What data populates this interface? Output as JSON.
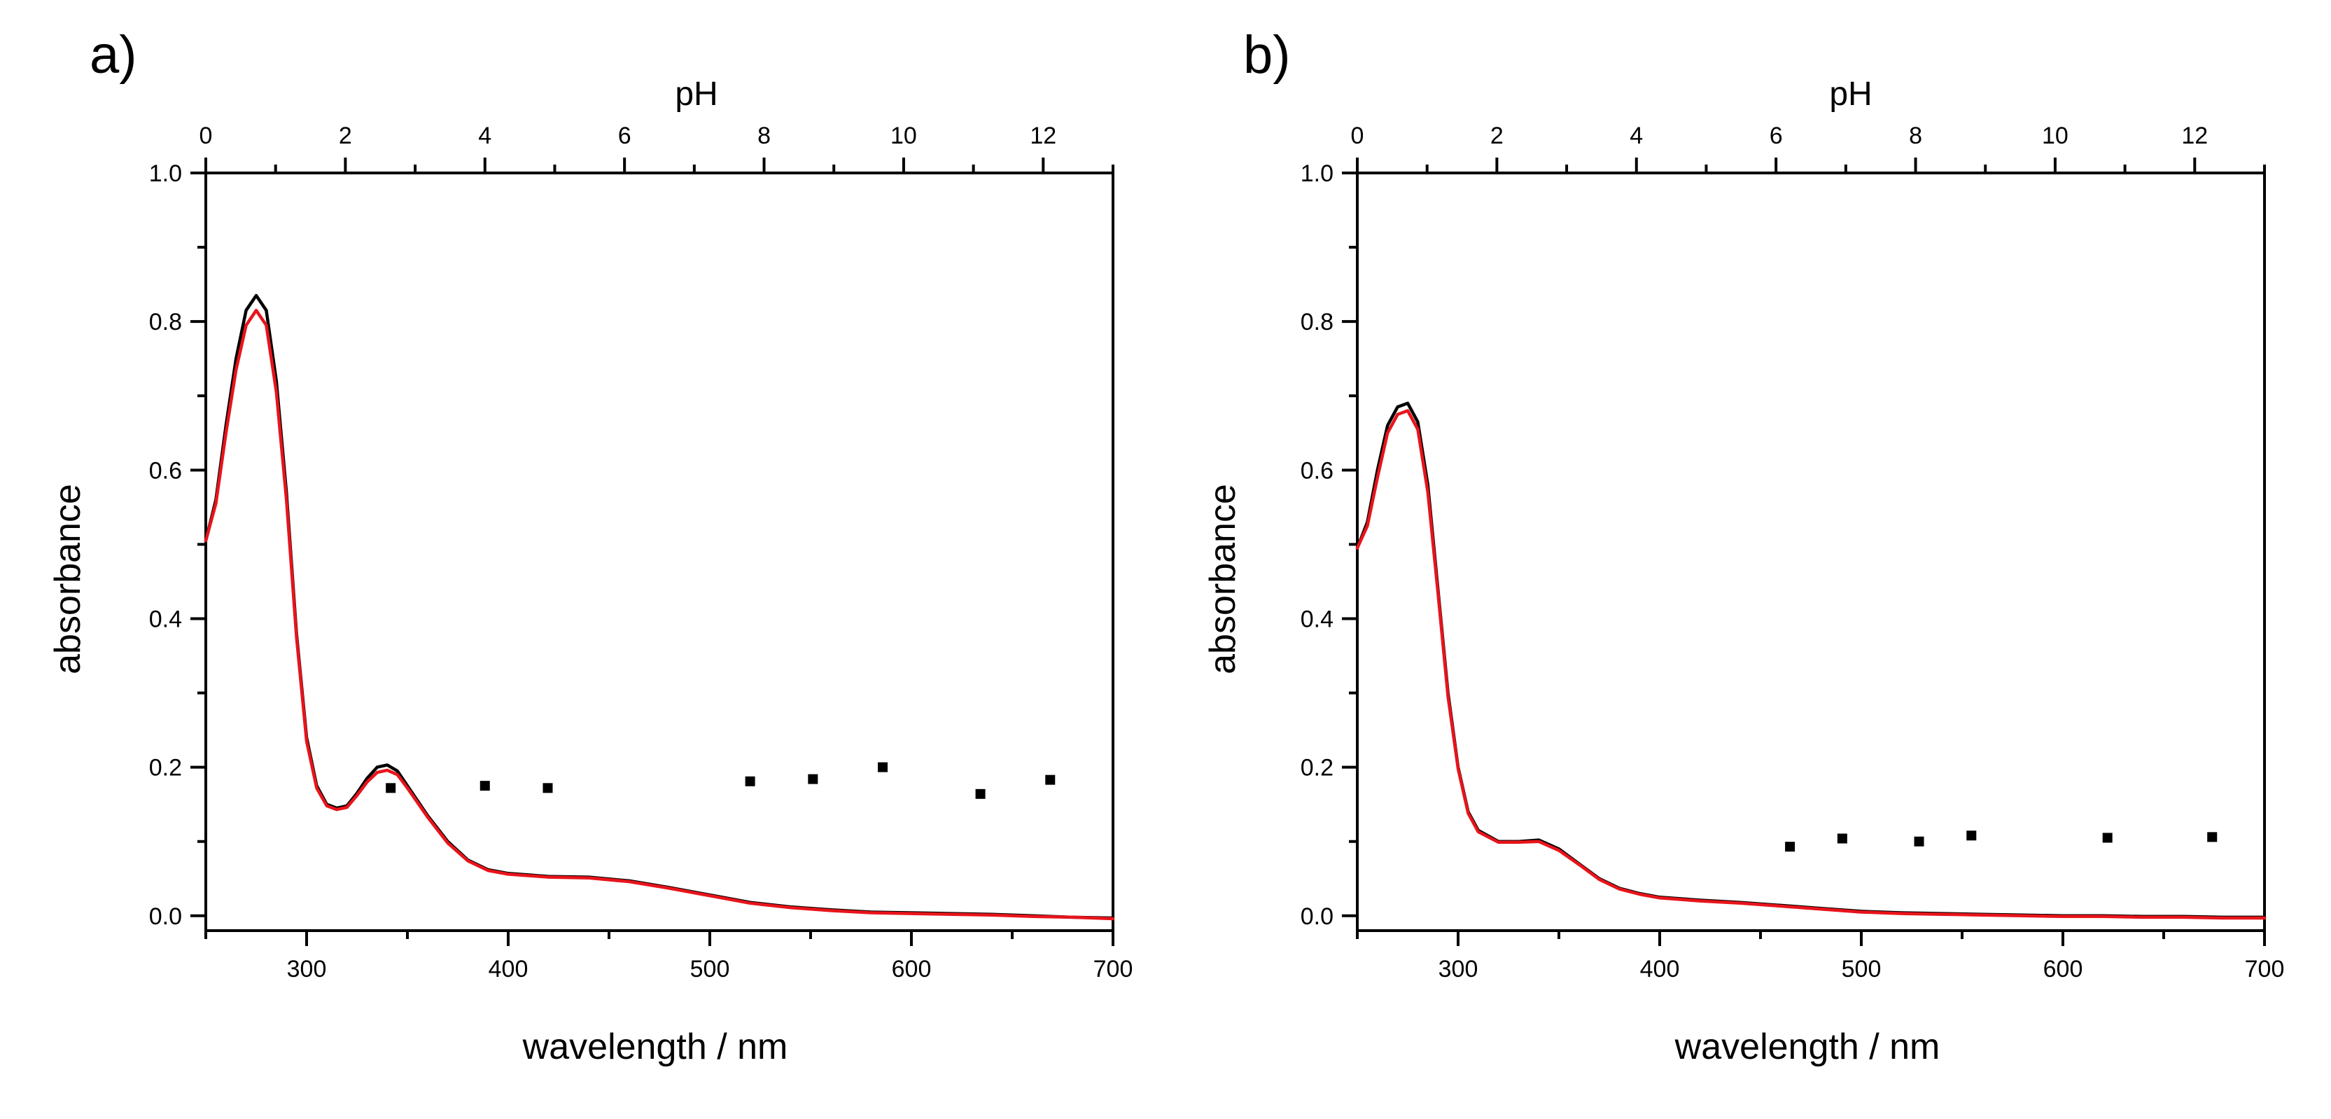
{
  "colors": {
    "series_black": "#000000",
    "series_red": "#e8141b",
    "points": "#000000"
  },
  "chart_data": [
    {
      "panel": "a)",
      "type": "line",
      "xlabel": "wavelength / nm",
      "ylabel": "absorbance",
      "top_xlabel": "pH",
      "xlim": [
        250,
        700
      ],
      "ylim": [
        -0.02,
        1.0
      ],
      "x_ticks": [
        300,
        400,
        500,
        600,
        700
      ],
      "y_ticks": [
        "0.0",
        "0.2",
        "0.4",
        "0.6",
        "0.8",
        "1.0"
      ],
      "top_xlim": [
        0,
        13
      ],
      "top_ticks": [
        0,
        2,
        4,
        6,
        8,
        10,
        12
      ],
      "series": [
        {
          "name": "black",
          "color": "#000000",
          "x": [
            250,
            255,
            260,
            265,
            270,
            275,
            280,
            285,
            290,
            295,
            300,
            305,
            310,
            315,
            320,
            325,
            330,
            335,
            340,
            345,
            350,
            360,
            370,
            380,
            390,
            400,
            420,
            440,
            460,
            480,
            500,
            520,
            540,
            560,
            580,
            600,
            620,
            640,
            660,
            680,
            700
          ],
          "y": [
            0.505,
            0.56,
            0.66,
            0.75,
            0.815,
            0.835,
            0.815,
            0.72,
            0.57,
            0.38,
            0.24,
            0.175,
            0.15,
            0.145,
            0.148,
            0.165,
            0.185,
            0.2,
            0.203,
            0.195,
            0.175,
            0.135,
            0.1,
            0.075,
            0.062,
            0.057,
            0.053,
            0.052,
            0.047,
            0.038,
            0.028,
            0.018,
            0.012,
            0.008,
            0.005,
            0.004,
            0.003,
            0.002,
            0.0,
            -0.002,
            -0.003
          ]
        },
        {
          "name": "red",
          "color": "#e8141b",
          "x": [
            250,
            255,
            260,
            265,
            270,
            275,
            280,
            285,
            290,
            295,
            300,
            305,
            310,
            315,
            320,
            325,
            330,
            335,
            340,
            345,
            350,
            360,
            370,
            380,
            390,
            400,
            420,
            440,
            460,
            480,
            500,
            520,
            540,
            560,
            580,
            600,
            620,
            640,
            660,
            680,
            700
          ],
          "y": [
            0.505,
            0.555,
            0.65,
            0.735,
            0.795,
            0.815,
            0.795,
            0.705,
            0.56,
            0.375,
            0.235,
            0.172,
            0.148,
            0.143,
            0.146,
            0.162,
            0.18,
            0.193,
            0.196,
            0.19,
            0.172,
            0.133,
            0.098,
            0.074,
            0.061,
            0.056,
            0.052,
            0.051,
            0.046,
            0.037,
            0.027,
            0.017,
            0.011,
            0.007,
            0.004,
            0.003,
            0.002,
            0.001,
            -0.001,
            -0.002,
            -0.004
          ]
        }
      ],
      "points": {
        "pH": [
          2.65,
          4.0,
          4.9,
          7.8,
          8.7,
          9.7,
          11.1,
          12.1
        ],
        "y": [
          0.172,
          0.175,
          0.172,
          0.181,
          0.184,
          0.2,
          0.164,
          0.183
        ]
      }
    },
    {
      "panel": "b)",
      "type": "line",
      "xlabel": "wavelength / nm",
      "ylabel": "absorbance",
      "top_xlabel": "pH",
      "xlim": [
        250,
        700
      ],
      "ylim": [
        -0.02,
        1.0
      ],
      "x_ticks": [
        300,
        400,
        500,
        600,
        700
      ],
      "y_ticks": [
        "0.0",
        "0.2",
        "0.4",
        "0.6",
        "0.8",
        "1.0"
      ],
      "top_xlim": [
        0,
        13
      ],
      "top_ticks": [
        0,
        2,
        4,
        6,
        8,
        10,
        12
      ],
      "series": [
        {
          "name": "black",
          "color": "#000000",
          "x": [
            250,
            255,
            260,
            265,
            270,
            275,
            280,
            285,
            290,
            295,
            300,
            305,
            310,
            320,
            330,
            340,
            350,
            360,
            370,
            380,
            390,
            400,
            420,
            440,
            460,
            480,
            500,
            520,
            540,
            560,
            580,
            600,
            620,
            640,
            660,
            680,
            700
          ],
          "y": [
            0.495,
            0.53,
            0.6,
            0.66,
            0.685,
            0.69,
            0.665,
            0.58,
            0.44,
            0.3,
            0.2,
            0.14,
            0.115,
            0.1,
            0.1,
            0.102,
            0.09,
            0.07,
            0.05,
            0.037,
            0.03,
            0.025,
            0.021,
            0.018,
            0.014,
            0.01,
            0.006,
            0.004,
            0.003,
            0.002,
            0.001,
            0.0,
            0.0,
            -0.001,
            -0.001,
            -0.002,
            -0.002
          ]
        },
        {
          "name": "red",
          "color": "#e8141b",
          "x": [
            250,
            255,
            260,
            265,
            270,
            275,
            280,
            285,
            290,
            295,
            300,
            305,
            310,
            320,
            330,
            340,
            350,
            360,
            370,
            380,
            390,
            400,
            420,
            440,
            460,
            480,
            500,
            520,
            540,
            560,
            580,
            600,
            620,
            640,
            660,
            680,
            700
          ],
          "y": [
            0.495,
            0.525,
            0.59,
            0.65,
            0.675,
            0.68,
            0.655,
            0.57,
            0.435,
            0.295,
            0.198,
            0.138,
            0.113,
            0.099,
            0.099,
            0.1,
            0.088,
            0.069,
            0.049,
            0.036,
            0.029,
            0.024,
            0.02,
            0.017,
            0.013,
            0.009,
            0.005,
            0.003,
            0.002,
            0.001,
            0.0,
            -0.001,
            -0.001,
            -0.002,
            -0.002,
            -0.003,
            -0.003
          ]
        }
      ],
      "points": {
        "pH": [
          6.2,
          6.95,
          8.05,
          8.8,
          10.75,
          12.25
        ],
        "y": [
          0.093,
          0.104,
          0.1,
          0.108,
          0.105,
          0.106
        ]
      }
    }
  ]
}
